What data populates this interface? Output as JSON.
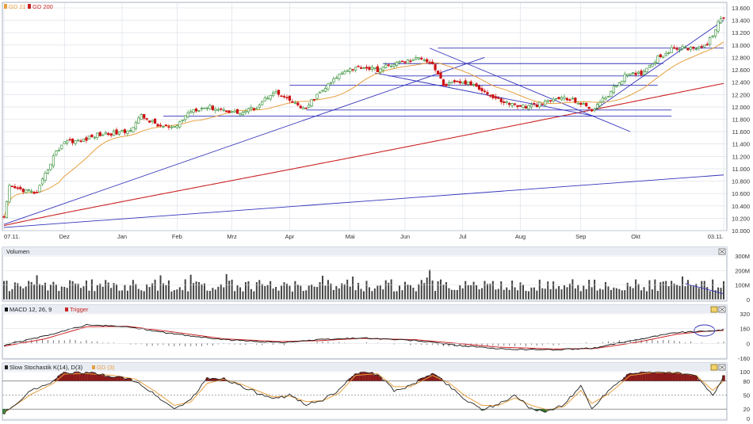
{
  "legend_main": [
    {
      "label": "GD 21",
      "color": "#e8a040"
    },
    {
      "label": "GD 200",
      "color": "#cc2222"
    }
  ],
  "x_ticks": [
    "07.11.",
    "Dez",
    "Jan",
    "Feb",
    "Mrz",
    "Apr",
    "Mai",
    "Jun",
    "Jul",
    "Aug",
    "Sep",
    "Okt",
    "03.11."
  ],
  "price_axis": [
    "13.600",
    "13.400",
    "13.200",
    "13.000",
    "12.800",
    "12.600",
    "12.400",
    "12.200",
    "12.000",
    "11.800",
    "11.600",
    "11.400",
    "11.200",
    "11.000",
    "10.800",
    "10.600",
    "10.400",
    "10.200",
    "10.000"
  ],
  "volume_panel": {
    "title": "Volumen",
    "axis": [
      "300M",
      "200M",
      "100M",
      "0"
    ]
  },
  "macd_panel": {
    "title": "MACD 12, 26, 9",
    "trigger_label": "Trigger",
    "axis": [
      "320",
      "160",
      "0",
      "-160"
    ]
  },
  "stoch_panel": {
    "title": "Slow Stochastik K(14), D(3)",
    "d_label": "GD (3)",
    "axis": [
      "100",
      "80",
      "50",
      "20",
      "0"
    ]
  },
  "colors": {
    "candle_up": "#2e8b2e",
    "candle_down": "#cc1111",
    "gd21": "#e8a040",
    "gd200": "#cc2222",
    "trendline": "#3333bb",
    "macd": "#111111",
    "trigger": "#cc2222",
    "grid": "#d8dde6",
    "stoch_k": "#222222",
    "stoch_d": "#e8a040",
    "fill_over": "#8b1a1a",
    "fill_under": "#2e7d2e"
  },
  "chart_data": [
    {
      "type": "candlestick",
      "title": "",
      "x_ticks": [
        "07.11.",
        "Dez",
        "Jan",
        "Feb",
        "Mrz",
        "Apr",
        "Mai",
        "Jun",
        "Jul",
        "Aug",
        "Sep",
        "Okt",
        "03.11."
      ],
      "ylim": [
        10000,
        13600
      ],
      "series": [
        {
          "name": "GD 21",
          "type": "line"
        },
        {
          "name": "GD 200",
          "type": "line"
        }
      ],
      "close_keypoints": [
        [
          0,
          10200
        ],
        [
          2,
          10700
        ],
        [
          8,
          10650
        ],
        [
          12,
          10600
        ],
        [
          18,
          11200
        ],
        [
          22,
          11450
        ],
        [
          28,
          11450
        ],
        [
          34,
          11550
        ],
        [
          45,
          11600
        ],
        [
          50,
          11850
        ],
        [
          56,
          11700
        ],
        [
          62,
          11650
        ],
        [
          68,
          11950
        ],
        [
          74,
          12000
        ],
        [
          80,
          11950
        ],
        [
          86,
          11900
        ],
        [
          92,
          12000
        ],
        [
          98,
          12250
        ],
        [
          104,
          12100
        ],
        [
          110,
          11950
        ],
        [
          112,
          12100
        ],
        [
          118,
          12350
        ],
        [
          124,
          12600
        ],
        [
          130,
          12650
        ],
        [
          136,
          12600
        ],
        [
          142,
          12700
        ],
        [
          148,
          12750
        ],
        [
          152,
          12800
        ],
        [
          156,
          12700
        ],
        [
          160,
          12350
        ],
        [
          166,
          12400
        ],
        [
          172,
          12350
        ],
        [
          178,
          12150
        ],
        [
          184,
          12050
        ],
        [
          190,
          12000
        ],
        [
          196,
          12050
        ],
        [
          202,
          12150
        ],
        [
          208,
          12100
        ],
        [
          214,
          11950
        ],
        [
          220,
          12200
        ],
        [
          226,
          12500
        ],
        [
          232,
          12550
        ],
        [
          238,
          12800
        ],
        [
          244,
          12950
        ],
        [
          250,
          12950
        ],
        [
          256,
          13000
        ],
        [
          260,
          13350
        ],
        [
          262,
          13450
        ]
      ],
      "trendlines": [
        {
          "from": [
            0,
            10050
          ],
          "to": [
            262,
            10900
          ]
        },
        {
          "from": [
            0,
            10100
          ],
          "to": [
            175,
            12800
          ]
        },
        {
          "from": [
            155,
            12950
          ],
          "to": [
            228,
            11600
          ]
        },
        {
          "from": [
            135,
            12550
          ],
          "to": [
            215,
            11850
          ]
        },
        {
          "from": [
            215,
            11950
          ],
          "to": [
            262,
            13400
          ]
        }
      ],
      "horizontal_levels": [
        12950,
        12700,
        12500,
        12350,
        11950,
        11850
      ]
    },
    {
      "type": "bar",
      "title": "Volumen",
      "ylim": [
        0,
        300
      ],
      "unit": "M",
      "typical_range": [
        60,
        150
      ],
      "max": 200
    },
    {
      "type": "line",
      "title": "MACD 12, 26, 9",
      "ylim": [
        -160,
        320
      ],
      "series": [
        {
          "name": "MACD 12, 26, 9",
          "keypoints": [
            [
              0,
              -20
            ],
            [
              15,
              80
            ],
            [
              30,
              200
            ],
            [
              45,
              180
            ],
            [
              60,
              110
            ],
            [
              80,
              40
            ],
            [
              100,
              10
            ],
            [
              115,
              40
            ],
            [
              130,
              60
            ],
            [
              150,
              30
            ],
            [
              165,
              -20
            ],
            [
              180,
              -60
            ],
            [
              200,
              -70
            ],
            [
              215,
              -50
            ],
            [
              230,
              40
            ],
            [
              245,
              120
            ],
            [
              255,
              130
            ],
            [
              262,
              150
            ]
          ]
        },
        {
          "name": "Trigger",
          "keypoints": [
            [
              0,
              -30
            ],
            [
              15,
              50
            ],
            [
              30,
              180
            ],
            [
              45,
              185
            ],
            [
              60,
              130
            ],
            [
              80,
              50
            ],
            [
              100,
              20
            ],
            [
              115,
              30
            ],
            [
              130,
              55
            ],
            [
              150,
              40
            ],
            [
              165,
              0
            ],
            [
              180,
              -40
            ],
            [
              200,
              -60
            ],
            [
              215,
              -55
            ],
            [
              230,
              10
            ],
            [
              245,
              100
            ],
            [
              255,
              130
            ],
            [
              262,
              140
            ]
          ]
        }
      ]
    },
    {
      "type": "line",
      "title": "Slow Stochastik K(14), D(3)",
      "ylim": [
        0,
        100
      ],
      "levels": [
        20,
        50,
        80
      ],
      "series": [
        {
          "name": "Slow Stochastik K(14)",
          "keypoints": [
            [
              0,
              10
            ],
            [
              10,
              60
            ],
            [
              18,
              80
            ],
            [
              22,
              98
            ],
            [
              30,
              98
            ],
            [
              40,
              90
            ],
            [
              48,
              80
            ],
            [
              55,
              50
            ],
            [
              62,
              20
            ],
            [
              68,
              40
            ],
            [
              74,
              85
            ],
            [
              80,
              85
            ],
            [
              86,
              70
            ],
            [
              92,
              55
            ],
            [
              98,
              40
            ],
            [
              104,
              50
            ],
            [
              110,
              30
            ],
            [
              116,
              40
            ],
            [
              122,
              60
            ],
            [
              128,
              98
            ],
            [
              136,
              95
            ],
            [
              142,
              60
            ],
            [
              148,
              70
            ],
            [
              156,
              98
            ],
            [
              162,
              70
            ],
            [
              168,
              40
            ],
            [
              174,
              20
            ],
            [
              180,
              30
            ],
            [
              186,
              50
            ],
            [
              192,
              20
            ],
            [
              198,
              15
            ],
            [
              204,
              30
            ],
            [
              210,
              70
            ],
            [
              214,
              20
            ],
            [
              220,
              60
            ],
            [
              228,
              98
            ],
            [
              236,
              99
            ],
            [
              244,
              98
            ],
            [
              252,
              90
            ],
            [
              258,
              50
            ],
            [
              262,
              90
            ]
          ]
        },
        {
          "name": "GD (3)",
          "keypoints": [
            [
              0,
              12
            ],
            [
              10,
              52
            ],
            [
              18,
              75
            ],
            [
              22,
              95
            ],
            [
              30,
              96
            ],
            [
              40,
              92
            ],
            [
              48,
              84
            ],
            [
              55,
              58
            ],
            [
              62,
              28
            ],
            [
              68,
              35
            ],
            [
              74,
              75
            ],
            [
              80,
              84
            ],
            [
              86,
              74
            ],
            [
              92,
              60
            ],
            [
              98,
              46
            ],
            [
              104,
              48
            ],
            [
              110,
              36
            ],
            [
              116,
              38
            ],
            [
              122,
              54
            ],
            [
              128,
              92
            ],
            [
              136,
              96
            ],
            [
              142,
              68
            ],
            [
              148,
              68
            ],
            [
              156,
              92
            ],
            [
              162,
              76
            ],
            [
              168,
              48
            ],
            [
              174,
              28
            ],
            [
              180,
              28
            ],
            [
              186,
              44
            ],
            [
              192,
              28
            ],
            [
              198,
              18
            ],
            [
              204,
              26
            ],
            [
              210,
              60
            ],
            [
              214,
              32
            ],
            [
              220,
              52
            ],
            [
              228,
              92
            ],
            [
              236,
              98
            ],
            [
              244,
              98
            ],
            [
              252,
              92
            ],
            [
              258,
              60
            ],
            [
              262,
              80
            ]
          ]
        }
      ]
    }
  ]
}
